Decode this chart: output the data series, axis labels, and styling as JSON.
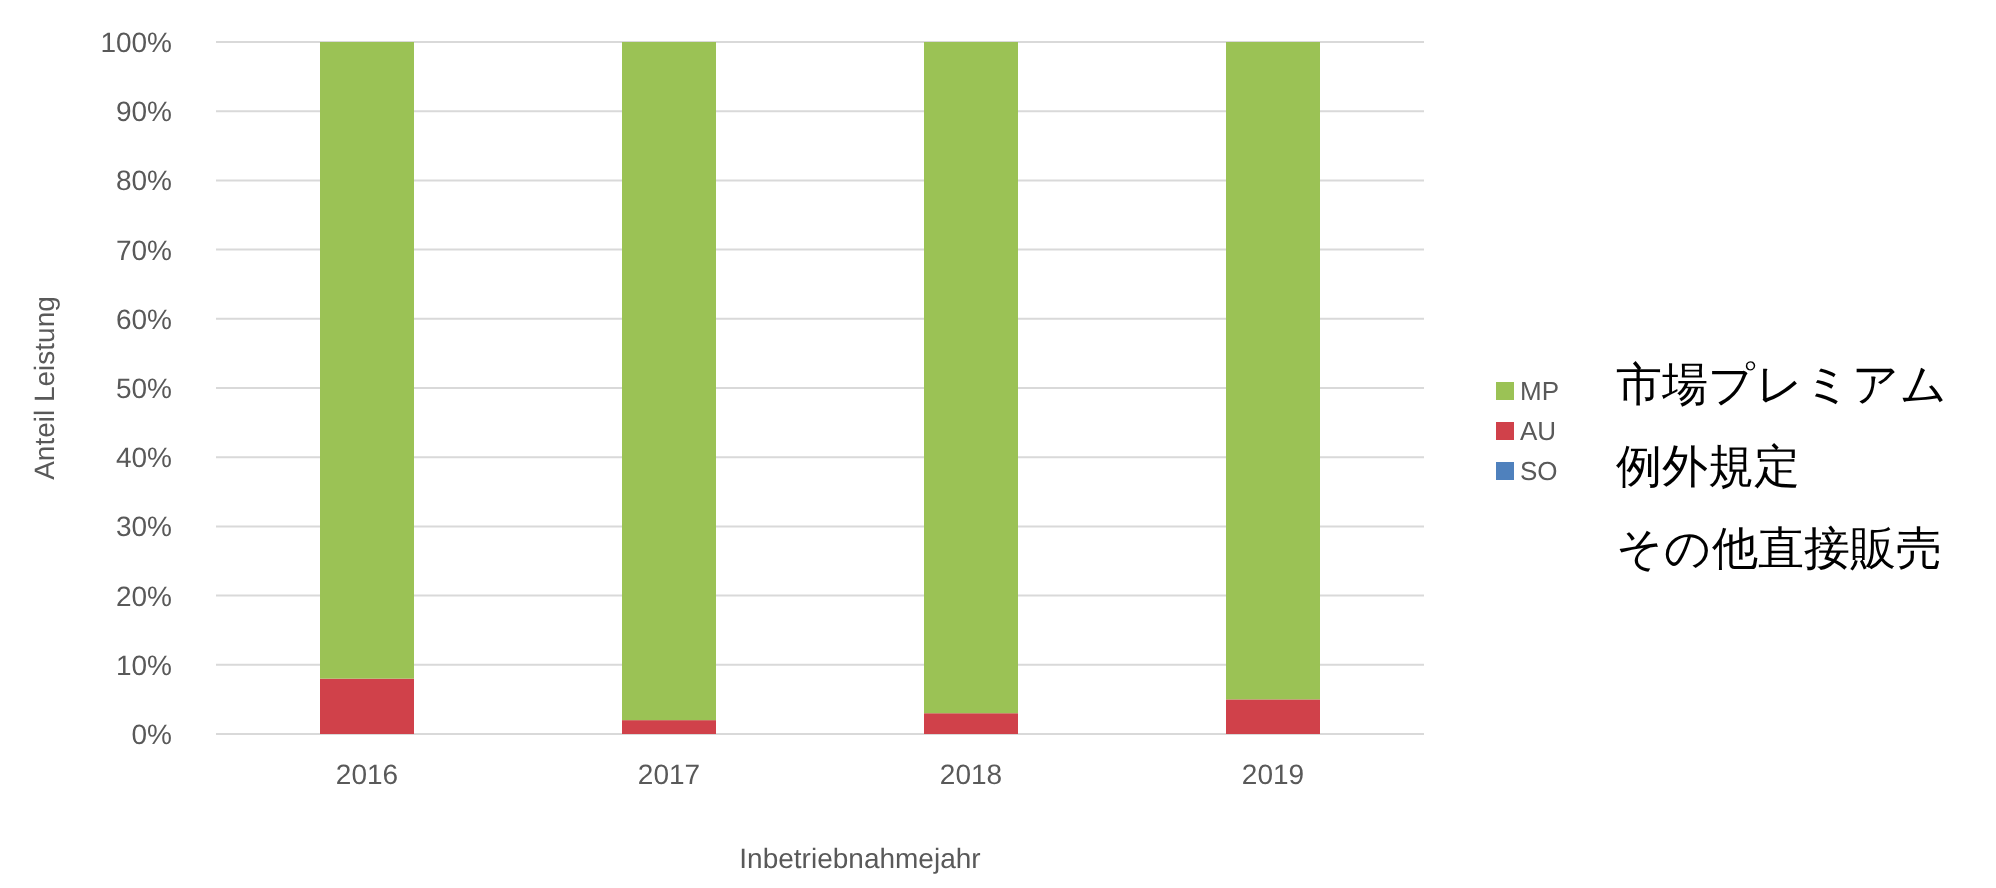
{
  "chart_data": {
    "type": "bar",
    "stacked": true,
    "xlabel": "Inbetriebnahmejahr",
    "ylabel": "Anteil Leistung",
    "categories": [
      "2016",
      "2017",
      "2018",
      "2019"
    ],
    "series": [
      {
        "name": "SO",
        "color": "#4f81bd",
        "values": [
          0,
          0,
          0,
          0
        ]
      },
      {
        "name": "AU",
        "color": "#d0414a",
        "values": [
          8,
          2,
          3,
          5
        ]
      },
      {
        "name": "MP",
        "color": "#9bc255",
        "values": [
          92,
          98,
          97,
          95
        ]
      }
    ],
    "ylim": [
      0,
      100
    ],
    "yticks": [
      {
        "value": 0,
        "label": "0%"
      },
      {
        "value": 10,
        "label": "10%"
      },
      {
        "value": 20,
        "label": "20%"
      },
      {
        "value": 30,
        "label": "30%"
      },
      {
        "value": 40,
        "label": "40%"
      },
      {
        "value": 50,
        "label": "50%"
      },
      {
        "value": 60,
        "label": "60%"
      },
      {
        "value": 70,
        "label": "70%"
      },
      {
        "value": 80,
        "label": "80%"
      },
      {
        "value": 90,
        "label": "90%"
      },
      {
        "value": 100,
        "label": "100%"
      }
    ],
    "grid": "y",
    "legend": "right",
    "annotations": [
      "市場プレミアム",
      "例外規定",
      "その他直接販売"
    ]
  }
}
